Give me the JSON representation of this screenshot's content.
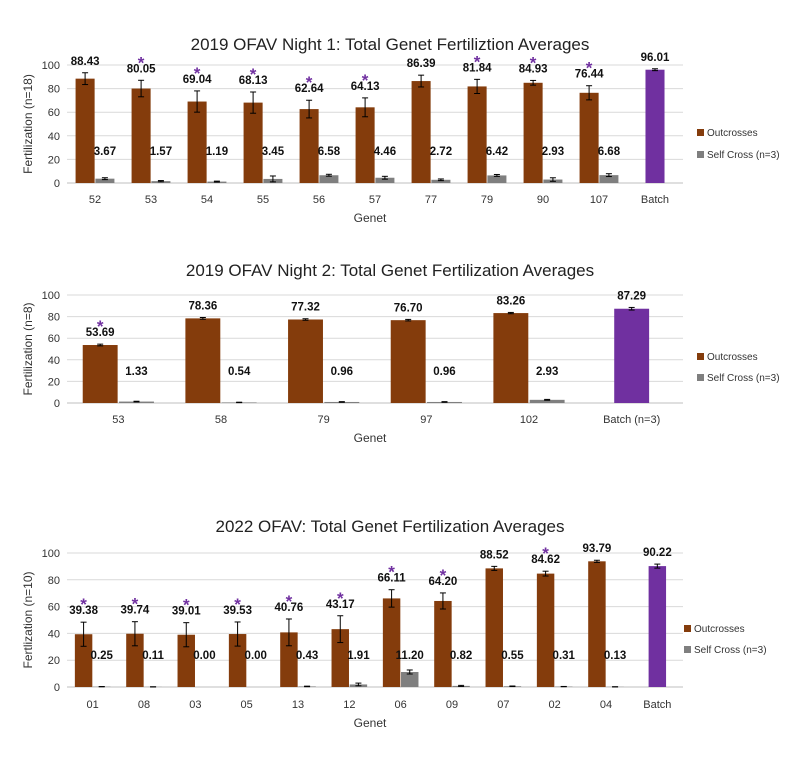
{
  "colors": {
    "outcross": "#843c0c",
    "self": "#7f7f7f",
    "batch": "#7030a0",
    "star": "#7030a0",
    "grid": "#d9d9d9",
    "axis": "#bfbfbf",
    "error": "#000000"
  },
  "chart_data": [
    {
      "type": "bar",
      "title": "2019 OFAV Night 1: Total Genet Fertiliztion Averages",
      "xlabel": "Genet",
      "ylabel": "Fertilization (n=18)",
      "ylim": [
        0,
        100
      ],
      "yticks": [
        0,
        20,
        40,
        60,
        80,
        100
      ],
      "grid": true,
      "legend_position": "right",
      "categories": [
        "52",
        "53",
        "54",
        "55",
        "56",
        "57",
        "77",
        "79",
        "90",
        "107",
        "Batch"
      ],
      "series": [
        {
          "name": "Outcrosses",
          "values": [
            88.43,
            80.05,
            69.04,
            68.13,
            62.64,
            64.13,
            86.39,
            81.84,
            84.93,
            76.44,
            null
          ],
          "labels": [
            "88.43",
            "80.05",
            "69.04",
            "68.13",
            "62.64",
            "64.13",
            "86.39",
            "81.84",
            "84.93",
            "76.44",
            ""
          ],
          "errors": [
            5,
            7,
            9,
            9,
            7.5,
            8,
            5,
            6,
            2,
            6,
            null
          ]
        },
        {
          "name": "Self Cross (n=3)",
          "values": [
            3.67,
            1.57,
            1.19,
            3.45,
            6.58,
            4.46,
            2.72,
            6.42,
            2.93,
            6.68,
            null
          ],
          "labels": [
            "3.67",
            "1.57",
            "1.19",
            "3.45",
            "6.58",
            "4.46",
            "2.72",
            "6.42",
            "2.93",
            "6.68",
            ""
          ],
          "errors": [
            0.8,
            0.5,
            0.4,
            2.5,
            0.8,
            1.2,
            0.7,
            0.8,
            1.5,
            1.2,
            null
          ]
        },
        {
          "name": "Batch",
          "values": [
            null,
            null,
            null,
            null,
            null,
            null,
            null,
            null,
            null,
            null,
            96.01
          ],
          "labels": [
            "",
            "",
            "",
            "",
            "",
            "",
            "",
            "",
            "",
            "",
            "96.01"
          ],
          "errors": [
            null,
            null,
            null,
            null,
            null,
            null,
            null,
            null,
            null,
            null,
            0.8
          ]
        }
      ],
      "significant": [
        false,
        true,
        true,
        true,
        true,
        true,
        false,
        true,
        true,
        true,
        false
      ],
      "significance_marker": "*"
    },
    {
      "type": "bar",
      "title": "2019 OFAV Night 2: Total Genet Fertilization Averages",
      "xlabel": "Genet",
      "ylabel": "Fertilization (n=8)",
      "ylim": [
        0,
        100
      ],
      "yticks": [
        0,
        20,
        40,
        60,
        80,
        100
      ],
      "grid": true,
      "legend_position": "right",
      "categories": [
        "53",
        "58",
        "79",
        "97",
        "102",
        "Batch (n=3)"
      ],
      "series": [
        {
          "name": "Outcrosses",
          "values": [
            53.69,
            78.36,
            77.32,
            76.7,
            83.26,
            null
          ],
          "labels": [
            "53.69",
            "78.36",
            "77.32",
            "76.70",
            "83.26",
            ""
          ],
          "errors": [
            0.8,
            0.8,
            0.7,
            0.7,
            0.6,
            null
          ]
        },
        {
          "name": "Self Cross (n=3)",
          "values": [
            1.33,
            0.54,
            0.96,
            0.96,
            2.93,
            null
          ],
          "labels": [
            "1.33",
            "0.54",
            "0.96",
            "0.96",
            "2.93",
            ""
          ],
          "errors": [
            0.3,
            0.2,
            0.3,
            0.3,
            0.4,
            null
          ]
        },
        {
          "name": "Batch",
          "values": [
            null,
            null,
            null,
            null,
            null,
            87.29
          ],
          "labels": [
            "",
            "",
            "",
            "",
            "",
            "87.29"
          ],
          "errors": [
            null,
            null,
            null,
            null,
            null,
            1.2
          ]
        }
      ],
      "significant": [
        true,
        false,
        false,
        false,
        false,
        false
      ],
      "significance_marker": "*"
    },
    {
      "type": "bar",
      "title": "2022 OFAV: Total Genet Fertilization Averages",
      "xlabel": "Genet",
      "ylabel": "Fertlization (n=10)",
      "ylim": [
        0,
        100
      ],
      "yticks": [
        0,
        20,
        40,
        60,
        80,
        100
      ],
      "grid": true,
      "legend_position": "right",
      "categories": [
        "01",
        "08",
        "03",
        "05",
        "13",
        "12",
        "06",
        "09",
        "07",
        "02",
        "04",
        "Batch"
      ],
      "series": [
        {
          "name": "Outcrosses",
          "values": [
            39.38,
            39.74,
            39.01,
            39.53,
            40.76,
            43.17,
            66.11,
            64.2,
            88.52,
            84.62,
            93.79,
            null
          ],
          "labels": [
            "39.38",
            "39.74",
            "39.01",
            "39.53",
            "40.76",
            "43.17",
            "66.11",
            "64.20",
            "88.52",
            "84.62",
            "93.79",
            ""
          ],
          "errors": [
            9,
            9,
            9,
            9,
            10,
            10,
            6.5,
            6,
            1.5,
            1.8,
            0.8,
            null
          ]
        },
        {
          "name": "Self Cross (n=3)",
          "values": [
            0.25,
            0.11,
            0,
            0,
            0.43,
            1.91,
            11.2,
            0.82,
            0.55,
            0.31,
            0.13,
            null
          ],
          "labels": [
            "0.25",
            "0.11",
            "0.00",
            "0.00",
            "0.43",
            "1.91",
            "11.20",
            "0.82",
            "0.55",
            "0.31",
            "0.13",
            ""
          ],
          "errors": [
            0.1,
            0.1,
            0,
            0,
            0.2,
            1,
            1.5,
            0.4,
            0.2,
            0.1,
            0.1,
            null
          ]
        },
        {
          "name": "Batch",
          "values": [
            null,
            null,
            null,
            null,
            null,
            null,
            null,
            null,
            null,
            null,
            null,
            90.22
          ],
          "labels": [
            "",
            "",
            "",
            "",
            "",
            "",
            "",
            "",
            "",
            "",
            "",
            "90.22"
          ],
          "errors": [
            null,
            null,
            null,
            null,
            null,
            null,
            null,
            null,
            null,
            null,
            null,
            1.5
          ]
        }
      ],
      "significant": [
        true,
        true,
        true,
        true,
        true,
        true,
        true,
        true,
        false,
        true,
        false,
        false
      ],
      "significance_marker": "*"
    }
  ]
}
